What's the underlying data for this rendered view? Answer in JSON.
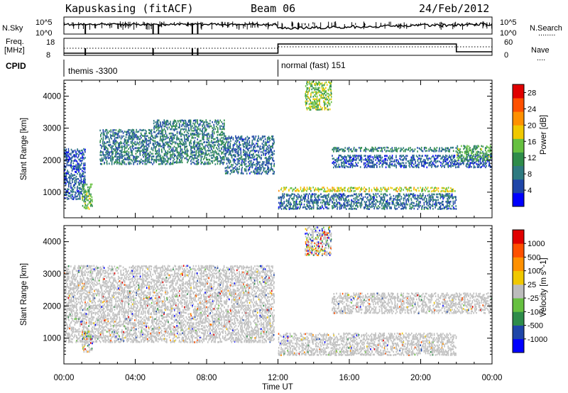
{
  "header": {
    "station": "Kapuskasing (fitACF)",
    "beam": "Beam 06",
    "date": "24/Feb/2012"
  },
  "noise_panel": {
    "left_label": "N.Sky",
    "right_label": "N.Search",
    "right_legend": "........",
    "left_ticks": [
      "10^5",
      "10^0"
    ],
    "right_ticks": [
      "10^5",
      "10^0"
    ]
  },
  "freq_panel": {
    "left_label_1": "Freq.",
    "left_label_2": "[MHz]",
    "right_label": "Nave",
    "right_legend": "....",
    "left_ticks": [
      "18",
      "8"
    ],
    "right_ticks": [
      "60",
      "0"
    ]
  },
  "cpid_panel": {
    "label": "CPID",
    "segments": [
      {
        "text": "themis -3300",
        "start_hour": 0
      },
      {
        "text": "normal (fast) 151",
        "start_hour": 12
      }
    ]
  },
  "colors": {
    "power_scale": [
      "#0000ff",
      "#1f46a8",
      "#2e7a80",
      "#2e8c4a",
      "#66c040",
      "#f0c800",
      "#ff9000",
      "#ff5000",
      "#e00000"
    ],
    "velocity_scale": [
      "#e00000",
      "#ff5000",
      "#ff9000",
      "#f0c800",
      "#bcbcbc",
      "#66c040",
      "#2e8c4a",
      "#1f46a8",
      "#0000ff"
    ],
    "ground_scatter": "#c0c0c0"
  },
  "chart_data": [
    {
      "type": "heatmap",
      "title": "",
      "xlabel": "Time UT",
      "ylabel": "Slant Range [km]",
      "xlim": [
        0,
        24
      ],
      "ylim": [
        200,
        4500
      ],
      "xticks": [
        "00:00",
        "04:00",
        "08:00",
        "12:00",
        "16:00",
        "20:00",
        "00:00"
      ],
      "yticks": [
        "1000",
        "2000",
        "3000",
        "4000"
      ],
      "colorbar": {
        "label": "Power [dB]",
        "ticks": [
          "4",
          "8",
          "12",
          "16",
          "20",
          "24",
          "28"
        ],
        "range": [
          0,
          30
        ]
      },
      "scatter_regions": [
        {
          "t0": 0.0,
          "t1": 1.2,
          "r0": 800,
          "r1": 2400,
          "level": 6
        },
        {
          "t0": 1.0,
          "t1": 1.6,
          "r0": 500,
          "r1": 1300,
          "level": 14
        },
        {
          "t0": 2.0,
          "t1": 5.0,
          "r0": 1900,
          "r1": 3000,
          "level": 8
        },
        {
          "t0": 5.0,
          "t1": 9.0,
          "r0": 1900,
          "r1": 3300,
          "level": 9
        },
        {
          "t0": 9.0,
          "t1": 11.8,
          "r0": 1600,
          "r1": 2800,
          "level": 7
        },
        {
          "t0": 12.0,
          "t1": 22.0,
          "r0": 1050,
          "r1": 1200,
          "level": 17
        },
        {
          "t0": 12.0,
          "t1": 22.0,
          "r0": 500,
          "r1": 1000,
          "level": 7
        },
        {
          "t0": 15.0,
          "t1": 22.0,
          "r0": 2300,
          "r1": 2450,
          "level": 9
        },
        {
          "t0": 15.0,
          "t1": 24.0,
          "r0": 1800,
          "r1": 2200,
          "level": 6
        },
        {
          "t0": 22.0,
          "t1": 24.0,
          "r0": 2000,
          "r1": 2500,
          "level": 13
        },
        {
          "t0": 13.5,
          "t1": 15.0,
          "r0": 3600,
          "r1": 4500,
          "level": 15
        }
      ]
    },
    {
      "type": "heatmap",
      "title": "",
      "xlabel": "Time UT",
      "ylabel": "Slant Range [km]",
      "xlim": [
        0,
        24
      ],
      "ylim": [
        200,
        4500
      ],
      "xticks": [
        "00:00",
        "04:00",
        "08:00",
        "12:00",
        "16:00",
        "20:00",
        "00:00"
      ],
      "yticks": [
        "1000",
        "2000",
        "3000",
        "4000"
      ],
      "colorbar": {
        "label": "Velocity [m s^-1]",
        "ticks": [
          "1000",
          "500",
          "100",
          "25",
          "-25",
          "-100",
          "-500",
          "-1000"
        ]
      },
      "scatter_regions": [
        {
          "t0": 0.0,
          "t1": 11.8,
          "r0": 900,
          "r1": 3300,
          "kind": "ground"
        },
        {
          "t0": 12.0,
          "t1": 22.0,
          "r0": 500,
          "r1": 1200,
          "kind": "ground"
        },
        {
          "t0": 15.0,
          "t1": 24.0,
          "r0": 1800,
          "r1": 2450,
          "kind": "ground"
        },
        {
          "t0": 13.5,
          "t1": 15.0,
          "r0": 3600,
          "r1": 4500,
          "kind": "mixed"
        },
        {
          "t0": 1.0,
          "t1": 1.6,
          "r0": 600,
          "r1": 1300,
          "kind": "mixed"
        }
      ]
    }
  ]
}
